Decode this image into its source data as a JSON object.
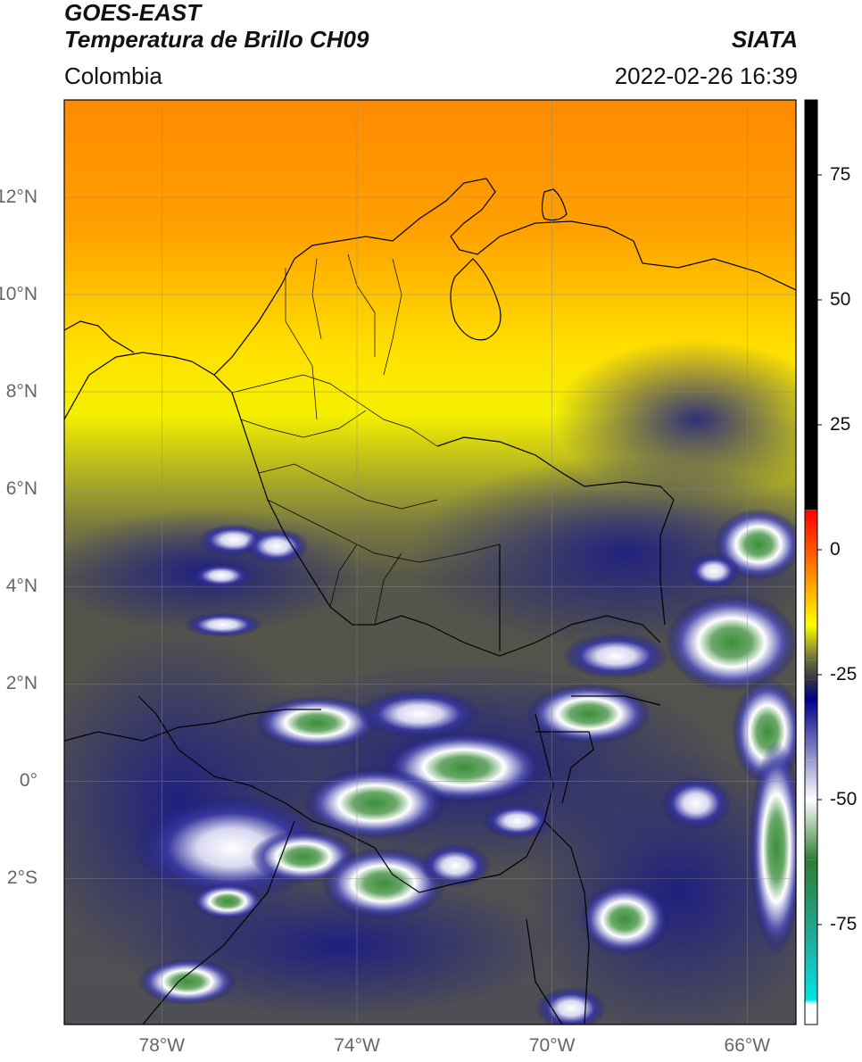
{
  "header": {
    "satellite": "GOES-EAST",
    "product": "Temperatura de Brillo CH09",
    "agency": "SIATA",
    "region": "Colombia",
    "timestamp": "2022-02-26 16:39"
  },
  "map": {
    "lon_range": [
      -80,
      -65
    ],
    "lat_range": [
      -5,
      14
    ],
    "lat_ticks": [
      {
        "value": 12,
        "label": "12°N"
      },
      {
        "value": 10,
        "label": "10°N"
      },
      {
        "value": 8,
        "label": "8°N"
      },
      {
        "value": 6,
        "label": "6°N"
      },
      {
        "value": 4,
        "label": "4°N"
      },
      {
        "value": 2,
        "label": "2°N"
      },
      {
        "value": 0,
        "label": "0°"
      },
      {
        "value": -2,
        "label": "2°S"
      }
    ],
    "lon_ticks": [
      {
        "value": -78,
        "label": "78°W"
      },
      {
        "value": -74,
        "label": "74°W"
      },
      {
        "value": -70,
        "label": "70°W"
      },
      {
        "value": -66,
        "label": "66°W"
      }
    ],
    "grid": true,
    "colors": {
      "hot": "#ff8c00",
      "warm": "#ffe000",
      "mid": "#5a5a45",
      "cold": "#1a1a80",
      "colder": "#ffffff",
      "coldest": "#3a8a3a"
    }
  },
  "colorbar": {
    "range": [
      -95,
      90
    ],
    "ticks": [
      {
        "value": 75,
        "label": "75"
      },
      {
        "value": 50,
        "label": "50"
      },
      {
        "value": 25,
        "label": "25"
      },
      {
        "value": 0,
        "label": "0"
      },
      {
        "value": -25,
        "label": "-25"
      },
      {
        "value": -50,
        "label": "-50"
      },
      {
        "value": -75,
        "label": "-75"
      }
    ],
    "stops": [
      {
        "value": 90,
        "color": "#000000"
      },
      {
        "value": 8,
        "color": "#000000"
      },
      {
        "value": 7.9,
        "color": "#ff0000"
      },
      {
        "value": -5,
        "color": "#ff8c00"
      },
      {
        "value": -15,
        "color": "#ffff00"
      },
      {
        "value": -22,
        "color": "#6b6b40"
      },
      {
        "value": -26,
        "color": "#333344"
      },
      {
        "value": -30,
        "color": "#000088"
      },
      {
        "value": -42,
        "color": "#9999cc"
      },
      {
        "value": -50,
        "color": "#ffffff"
      },
      {
        "value": -62,
        "color": "#2e7d32"
      },
      {
        "value": -80,
        "color": "#20b2aa"
      },
      {
        "value": -90,
        "color": "#00e5e5"
      },
      {
        "value": -91,
        "color": "#ffffff"
      },
      {
        "value": -95,
        "color": "#ffffff"
      }
    ]
  }
}
